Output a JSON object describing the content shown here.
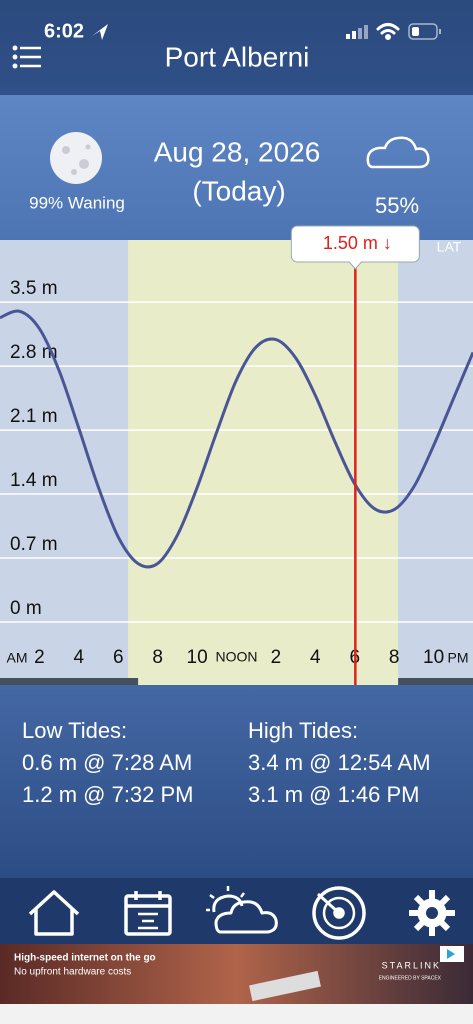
{
  "status_bar": {
    "time": "6:02"
  },
  "header": {
    "title": "Port Alberni"
  },
  "info": {
    "moon": "99% Waning",
    "date": "Aug 28, 2026",
    "day": "(Today)",
    "cloud": "55%"
  },
  "chart_data": {
    "type": "line",
    "x": [
      0,
      1,
      2,
      3,
      4,
      5,
      6,
      7,
      8,
      9,
      10,
      11,
      12,
      13,
      14,
      15,
      16,
      17,
      18,
      19,
      20,
      21,
      22,
      23,
      24
    ],
    "series": [
      {
        "color": "#4a5596",
        "values": [
          3.33,
          3.4,
          3.21,
          2.75,
          2.12,
          1.47,
          0.93,
          0.64,
          0.64,
          0.95,
          1.47,
          2.08,
          2.65,
          3.01,
          3.09,
          2.89,
          2.48,
          1.97,
          1.51,
          1.24,
          1.23,
          1.48,
          1.93,
          2.44,
          2.95
        ]
      }
    ],
    "xlim": [
      0,
      24
    ],
    "xticks": [
      2,
      4,
      6,
      8,
      10,
      {
        "value": 12,
        "label": "NOON"
      },
      {
        "value": 14,
        "label": "2"
      },
      {
        "value": 16,
        "label": "4"
      },
      {
        "value": 18,
        "label": "6"
      },
      {
        "value": 20,
        "label": "8"
      },
      {
        "value": 22,
        "label": "10"
      }
    ],
    "am_label": "AM",
    "pm_label": "PM",
    "ylim": [
      0,
      4.18
    ],
    "yticks": [
      {
        "value": 0,
        "label": "0 m"
      },
      {
        "value": 0.7,
        "label": "0.7 m"
      },
      {
        "value": 1.4,
        "label": "1.4 m"
      },
      {
        "value": 2.1,
        "label": "2.1 m"
      },
      {
        "value": 2.8,
        "label": "2.8 m"
      },
      {
        "value": 3.5,
        "label": "3.5 m"
      }
    ],
    "grid": true,
    "datum_label": "LAT",
    "daylight": [
      6.5,
      20.2
    ],
    "marker": {
      "x": 18.03,
      "value": 1.5,
      "label": "1.50 m ↓",
      "color": "#e0201c"
    }
  },
  "tides": {
    "low_title": "Low Tides:",
    "low": [
      "0.6 m @ 7:28 AM",
      "1.2 m @ 7:32 PM"
    ],
    "high_title": "High Tides:",
    "high": [
      "3.4 m @ 12:54 AM",
      "3.1 m @ 1:46 PM"
    ]
  },
  "ad": {
    "headline": "High-speed internet on the go",
    "subline": "No upfront hardware costs",
    "brand": "STARLINK",
    "brand_sub": "ENGINEERED BY SPACEX"
  }
}
